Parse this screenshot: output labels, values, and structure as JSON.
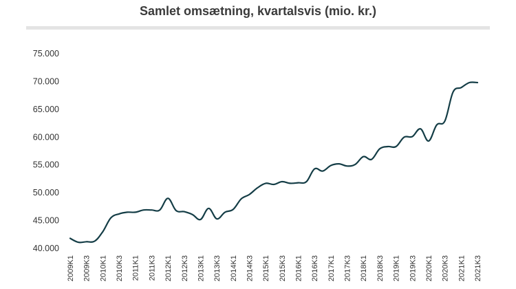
{
  "chart_data": {
    "type": "line",
    "title": "Samlet omsætning, kvartalsvis (mio. kr.)",
    "xlabel": "",
    "ylabel": "",
    "ylim": [
      40000,
      75000
    ],
    "yticks": [
      40000,
      45000,
      50000,
      55000,
      60000,
      65000,
      70000,
      75000
    ],
    "ytick_labels": [
      "40.000",
      "45.000",
      "50.000",
      "55.000",
      "60.000",
      "65.000",
      "70.000",
      "75.000"
    ],
    "grid": false,
    "line_color": "#143d46",
    "x_tick_labels": [
      "2009K1",
      "2009K3",
      "2010K1",
      "2010K3",
      "2011K1",
      "2011K3",
      "2012K1",
      "2012K3",
      "2013K1",
      "2013K3",
      "2014K1",
      "2014K3",
      "2015K1",
      "2015K3",
      "2016K1",
      "2016K3",
      "2017K1",
      "2017K3",
      "2018K1",
      "2018K3",
      "2019K1",
      "2019K3",
      "2020K1",
      "2020K3",
      "2021K1",
      "2021K3"
    ],
    "x": [
      "2009K1",
      "2009K2",
      "2009K3",
      "2009K4",
      "2010K1",
      "2010K2",
      "2010K3",
      "2010K4",
      "2011K1",
      "2011K2",
      "2011K3",
      "2011K4",
      "2012K1",
      "2012K2",
      "2012K3",
      "2012K4",
      "2013K1",
      "2013K2",
      "2013K3",
      "2013K4",
      "2014K1",
      "2014K2",
      "2014K3",
      "2014K4",
      "2015K1",
      "2015K2",
      "2015K3",
      "2015K4",
      "2016K1",
      "2016K2",
      "2016K3",
      "2016K4",
      "2017K1",
      "2017K2",
      "2017K3",
      "2017K4",
      "2018K1",
      "2018K2",
      "2018K3",
      "2018K4",
      "2019K1",
      "2019K2",
      "2019K3",
      "2019K4",
      "2020K1",
      "2020K2",
      "2020K3",
      "2020K4",
      "2021K1",
      "2021K2",
      "2021K3"
    ],
    "series": [
      {
        "values": [
          41800,
          41100,
          41200,
          41300,
          43000,
          45500,
          46200,
          46500,
          46500,
          46900,
          46900,
          46900,
          49000,
          46800,
          46600,
          46100,
          45200,
          47200,
          45300,
          46500,
          47000,
          48900,
          49700,
          50900,
          51700,
          51500,
          52000,
          51700,
          51800,
          52000,
          54300,
          53900,
          54900,
          55200,
          54800,
          55100,
          56500,
          56000,
          57900,
          58300,
          58300,
          60000,
          60100,
          61500,
          59300,
          62200,
          62900,
          68100,
          68900,
          69800,
          69800
        ]
      }
    ]
  }
}
